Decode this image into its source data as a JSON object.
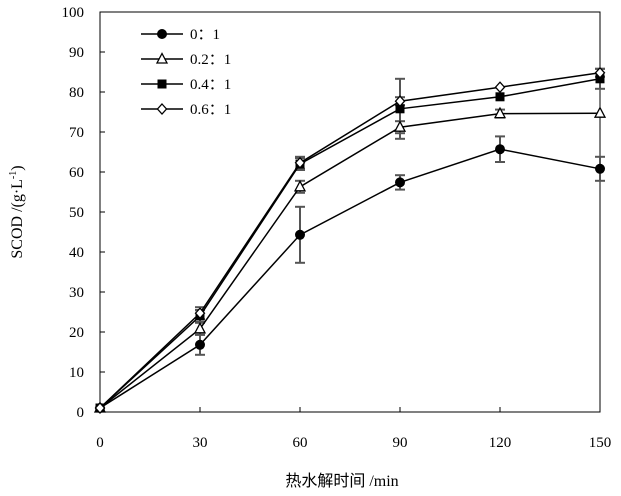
{
  "chart_data": {
    "type": "line",
    "xlabel": "热水解时间 /min",
    "ylabel_text": "SCOD /(g·L",
    "ylabel_sup": "-1",
    "ylabel_close": ")",
    "x": [
      0,
      30,
      60,
      90,
      120,
      150
    ],
    "xlim": [
      0,
      150
    ],
    "ylim": [
      0,
      100
    ],
    "xticks": [
      0,
      30,
      60,
      90,
      120,
      150
    ],
    "yticks": [
      0,
      10,
      20,
      30,
      40,
      50,
      60,
      70,
      80,
      90,
      100
    ],
    "grid": false,
    "legend_position": "top-left",
    "series": [
      {
        "name": "0：1",
        "marker": "filled-circle",
        "values": [
          1,
          16.8,
          44.3,
          57.4,
          65.7,
          60.8
        ],
        "errors": [
          0.5,
          2.5,
          7.0,
          1.8,
          3.2,
          3.0
        ]
      },
      {
        "name": "0.2：1",
        "marker": "open-triangle",
        "values": [
          1,
          20.8,
          56.3,
          71.2,
          74.6,
          74.7
        ],
        "errors": [
          0.5,
          1.5,
          1.5,
          1.5,
          1.0,
          0.5
        ]
      },
      {
        "name": "0.4：1",
        "marker": "filled-square",
        "values": [
          1,
          24.0,
          62.0,
          75.8,
          78.8,
          83.3
        ],
        "errors": [
          0.5,
          1.5,
          1.5,
          7.5,
          0.5,
          2.5
        ]
      },
      {
        "name": "0.6：1",
        "marker": "open-diamond",
        "values": [
          1,
          24.7,
          62.3,
          77.7,
          81.2,
          84.8
        ],
        "errors": [
          0.5,
          1.5,
          1.5,
          1.0,
          0.5,
          1.0
        ]
      }
    ],
    "colors": {
      "line": "#000000",
      "errorbar": "#555555"
    }
  }
}
